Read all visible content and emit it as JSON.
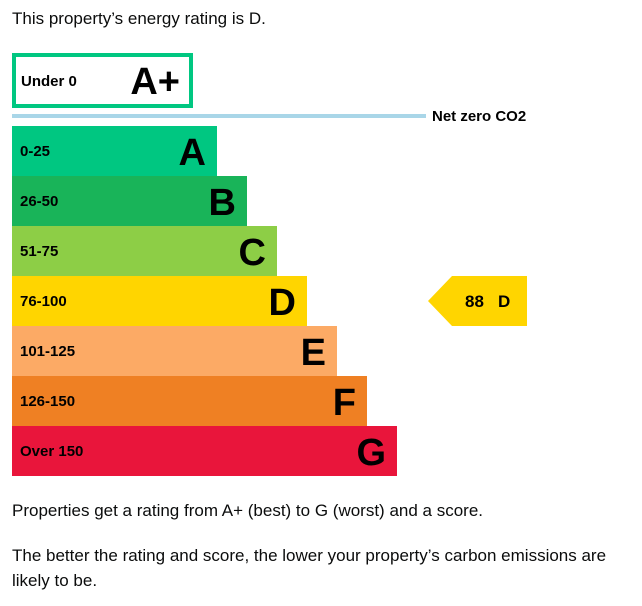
{
  "intro": "This property’s energy rating is D.",
  "paragraphs": [
    "Properties get a rating from A+ (best) to G (worst) and a score.",
    "The better the rating and score, the lower your property’s carbon emissions are likely to be."
  ],
  "chart_data": {
    "type": "bar",
    "top_band": {
      "range": "Under 0",
      "letter": "A+",
      "border_color": "#00c781"
    },
    "net_zero_label": "Net zero CO2",
    "net_zero_line_color": "#a9d6e8",
    "bands": [
      {
        "range": "0-25",
        "letter": "A",
        "color": "#00c781",
        "score_upper": 25
      },
      {
        "range": "26-50",
        "letter": "B",
        "color": "#19b459",
        "score_upper": 50
      },
      {
        "range": "51-75",
        "letter": "C",
        "color": "#8dce46",
        "score_upper": 75
      },
      {
        "range": "76-100",
        "letter": "D",
        "color": "#ffd500",
        "score_upper": 100
      },
      {
        "range": "101-125",
        "letter": "E",
        "color": "#fcaa65",
        "score_upper": 125
      },
      {
        "range": "126-150",
        "letter": "F",
        "color": "#ef8023",
        "score_upper": 150
      },
      {
        "range": "Over 150",
        "letter": "G",
        "color": "#e9153b",
        "score_upper": 175
      }
    ],
    "current": {
      "score": "88",
      "letter": "D",
      "color": "#ffd500"
    }
  }
}
